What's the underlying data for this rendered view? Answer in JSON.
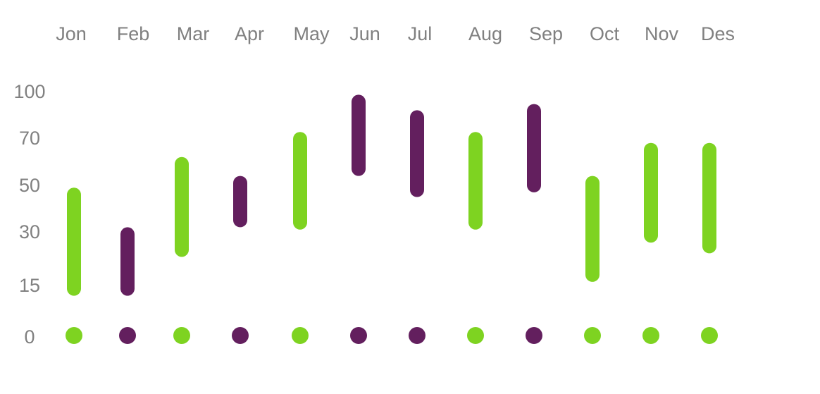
{
  "chart_data": {
    "type": "range-bar",
    "categories": [
      "Jon",
      "Feb",
      "Mar",
      "Apr",
      "May",
      "Jun",
      "Jul",
      "Aug",
      "Sep",
      "Oct",
      "Nov",
      "Des"
    ],
    "y_ticks": [
      0,
      15,
      30,
      50,
      70,
      100
    ],
    "ylim": [
      0,
      100
    ],
    "ranges": [
      {
        "category": "Jon",
        "low": 12,
        "high": 49,
        "color": "#7ED321"
      },
      {
        "category": "Feb",
        "low": 12,
        "high": 32,
        "color": "#631F5E"
      },
      {
        "category": "Mar",
        "low": 23,
        "high": 62,
        "color": "#7ED321"
      },
      {
        "category": "Apr",
        "low": 32,
        "high": 54,
        "color": "#631F5E"
      },
      {
        "category": "May",
        "low": 31,
        "high": 74,
        "color": "#7ED321"
      },
      {
        "category": "Jun",
        "low": 54,
        "high": 98,
        "color": "#631F5E"
      },
      {
        "category": "Jul",
        "low": 45,
        "high": 88,
        "color": "#631F5E"
      },
      {
        "category": "Aug",
        "low": 31,
        "high": 74,
        "color": "#7ED321"
      },
      {
        "category": "Sep",
        "low": 47,
        "high": 92,
        "color": "#631F5E"
      },
      {
        "category": "Oct",
        "low": 16,
        "high": 54,
        "color": "#7ED321"
      },
      {
        "category": "Nov",
        "low": 27,
        "high": 68,
        "color": "#7ED321"
      },
      {
        "category": "Des",
        "low": 24,
        "high": 68,
        "color": "#7ED321"
      }
    ],
    "colors": {
      "green": "#7ED321",
      "purple": "#631F5E",
      "label": "#808080"
    },
    "grid": false,
    "legend": "none"
  }
}
